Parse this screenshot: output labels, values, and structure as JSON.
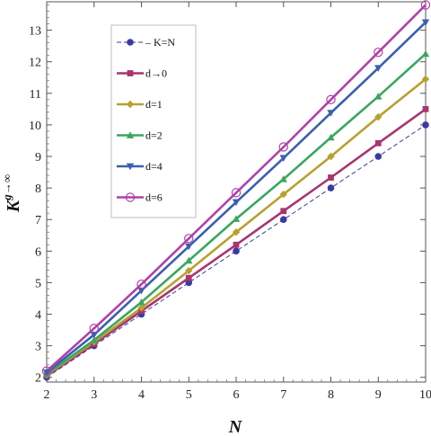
{
  "chart_data": {
    "type": "line",
    "xlabel": "N",
    "ylabel": "K",
    "ylabel_superscript": "g→∞",
    "x": [
      2,
      3,
      4,
      5,
      6,
      7,
      8,
      9,
      10
    ],
    "xlim": [
      2,
      10
    ],
    "ylim": [
      1.85,
      13.9
    ],
    "xticks": [
      "2",
      "3",
      "4",
      "5",
      "6",
      "7",
      "8",
      "9",
      "10"
    ],
    "yticks": [
      "2",
      "3",
      "4",
      "5",
      "6",
      "7",
      "8",
      "9",
      "10",
      "11",
      "12",
      "13"
    ],
    "grid": false,
    "legend_position": "top-left",
    "series": [
      {
        "name": "K=N",
        "color": "#3a3aa0",
        "marker": "circle-filled",
        "dashed": true,
        "values": [
          2.0,
          3.0,
          4.0,
          5.0,
          6.0,
          7.0,
          8.0,
          9.0,
          10.0
        ]
      },
      {
        "name": "d→0",
        "color": "#a8356f",
        "marker": "square",
        "dashed": false,
        "values": [
          2.05,
          3.06,
          4.1,
          5.15,
          6.2,
          7.27,
          8.33,
          9.42,
          10.5
        ]
      },
      {
        "name": "d=1",
        "color": "#b8a030",
        "marker": "diamond",
        "dashed": false,
        "values": [
          2.08,
          3.12,
          4.2,
          5.38,
          6.6,
          7.8,
          9.0,
          10.25,
          11.45
        ]
      },
      {
        "name": "d=2",
        "color": "#3aa660",
        "marker": "triangle-up",
        "dashed": false,
        "values": [
          2.1,
          3.18,
          4.38,
          5.7,
          7.02,
          8.28,
          9.6,
          10.9,
          12.25
        ]
      },
      {
        "name": "d=4",
        "color": "#3a5fb0",
        "marker": "triangle-down",
        "dashed": false,
        "values": [
          2.15,
          3.35,
          4.75,
          6.15,
          7.55,
          8.95,
          10.38,
          11.8,
          13.25
        ]
      },
      {
        "name": "d=6",
        "color": "#b040a8",
        "marker": "circle-open",
        "dashed": false,
        "values": [
          2.2,
          3.55,
          4.95,
          6.4,
          7.85,
          9.3,
          10.8,
          12.3,
          13.8
        ]
      }
    ]
  }
}
